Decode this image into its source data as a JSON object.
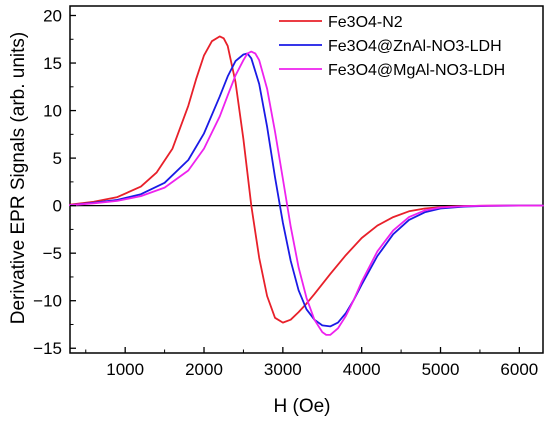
{
  "chart_data": {
    "type": "line",
    "title": "",
    "xlabel": "H (Oe)",
    "ylabel": "Derivative EPR Signals (arb. units)",
    "xlim": [
      300,
      6300
    ],
    "ylim": [
      -15.5,
      21
    ],
    "xticks": [
      1000,
      2000,
      3000,
      4000,
      5000,
      6000
    ],
    "yticks": [
      -15,
      -10,
      -5,
      0,
      5,
      10,
      15,
      20
    ],
    "grid": false,
    "legend_position": "top-right",
    "zero_line": true,
    "series": [
      {
        "name": "Fe3O4-N2",
        "color": "#e8202a",
        "x": [
          300,
          600,
          900,
          1200,
          1400,
          1600,
          1800,
          1900,
          2000,
          2100,
          2200,
          2250,
          2300,
          2400,
          2500,
          2600,
          2700,
          2800,
          2900,
          3000,
          3100,
          3200,
          3300,
          3400,
          3600,
          3800,
          4000,
          4200,
          4400,
          4600,
          4800,
          5000,
          5200,
          5500,
          5800,
          6300
        ],
        "values": [
          0.1,
          0.4,
          0.9,
          2.0,
          3.5,
          6.0,
          10.5,
          13.3,
          15.8,
          17.3,
          17.8,
          17.6,
          16.8,
          13.0,
          7.0,
          0.0,
          -5.5,
          -9.5,
          -11.8,
          -12.3,
          -12.0,
          -11.2,
          -10.3,
          -9.3,
          -7.2,
          -5.2,
          -3.4,
          -2.1,
          -1.2,
          -0.6,
          -0.3,
          -0.15,
          -0.07,
          -0.02,
          0.0,
          0.0
        ]
      },
      {
        "name": "Fe3O4@ZnAl-NO3-LDH",
        "color": "#1a1ae6",
        "x": [
          300,
          600,
          900,
          1200,
          1500,
          1800,
          2000,
          2200,
          2300,
          2400,
          2500,
          2550,
          2600,
          2700,
          2800,
          2900,
          3000,
          3100,
          3200,
          3300,
          3400,
          3500,
          3600,
          3700,
          3800,
          3900,
          4000,
          4200,
          4400,
          4600,
          4800,
          5000,
          5300,
          5600,
          6000,
          6300
        ],
        "values": [
          0.05,
          0.3,
          0.6,
          1.2,
          2.4,
          4.8,
          7.6,
          11.5,
          13.6,
          15.2,
          15.9,
          16.0,
          15.5,
          12.8,
          8.3,
          3.0,
          -1.8,
          -5.8,
          -8.9,
          -10.9,
          -12.0,
          -12.6,
          -12.7,
          -12.3,
          -11.3,
          -9.9,
          -8.3,
          -5.3,
          -3.0,
          -1.5,
          -0.7,
          -0.3,
          -0.1,
          -0.03,
          0.0,
          0.0
        ]
      },
      {
        "name": "Fe3O4@MgAl-NO3-LDH",
        "color": "#ee22ee",
        "x": [
          300,
          600,
          900,
          1200,
          1500,
          1800,
          2000,
          2200,
          2300,
          2400,
          2500,
          2550,
          2600,
          2650,
          2700,
          2800,
          2900,
          3000,
          3100,
          3200,
          3300,
          3400,
          3500,
          3550,
          3600,
          3700,
          3800,
          3900,
          4000,
          4200,
          4400,
          4600,
          4800,
          5000,
          5300,
          5600,
          6000,
          6300
        ],
        "values": [
          0.05,
          0.25,
          0.5,
          1.0,
          1.9,
          3.7,
          6.0,
          9.4,
          11.6,
          13.7,
          15.3,
          16.0,
          16.2,
          16.0,
          15.3,
          12.3,
          7.8,
          2.8,
          -2.2,
          -6.5,
          -9.7,
          -12.0,
          -13.3,
          -13.6,
          -13.6,
          -12.9,
          -11.6,
          -9.9,
          -8.0,
          -4.8,
          -2.6,
          -1.2,
          -0.5,
          -0.2,
          -0.05,
          -0.01,
          0.0,
          0.0
        ]
      }
    ]
  }
}
